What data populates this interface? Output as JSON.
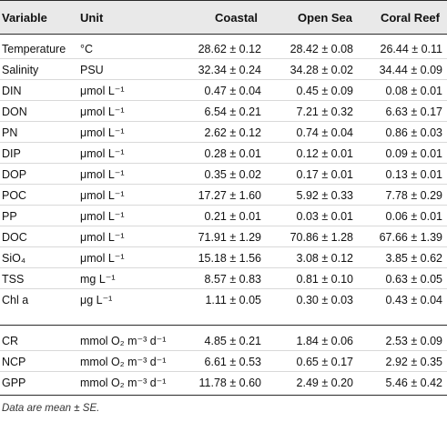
{
  "header": {
    "variable": "Variable",
    "unit": "Unit",
    "coastal": "Coastal",
    "open_sea": "Open Sea",
    "coral_reef": "Coral Reef"
  },
  "rows": [
    {
      "variable": "Temperature",
      "unit": "°C",
      "coastal": "28.62 ± 0.12",
      "open_sea": "28.42 ± 0.08",
      "coral_reef": "26.44 ± 0.11"
    },
    {
      "variable": "Salinity",
      "unit": "PSU",
      "coastal": "32.34 ± 0.24",
      "open_sea": "34.28 ± 0.02",
      "coral_reef": "34.44 ± 0.09"
    },
    {
      "variable": "DIN",
      "unit": "μmol L⁻¹",
      "coastal": "0.47 ± 0.04",
      "open_sea": "0.45 ± 0.09",
      "coral_reef": "0.08 ± 0.01"
    },
    {
      "variable": "DON",
      "unit": "μmol L⁻¹",
      "coastal": "6.54 ± 0.21",
      "open_sea": "7.21 ± 0.32",
      "coral_reef": "6.63 ± 0.17"
    },
    {
      "variable": "PN",
      "unit": "μmol L⁻¹",
      "coastal": "2.62 ± 0.12",
      "open_sea": "0.74 ± 0.04",
      "coral_reef": "0.86 ± 0.03"
    },
    {
      "variable": "DIP",
      "unit": "μmol L⁻¹",
      "coastal": "0.28 ± 0.01",
      "open_sea": "0.12 ± 0.01",
      "coral_reef": "0.09 ± 0.01"
    },
    {
      "variable": "DOP",
      "unit": "μmol L⁻¹",
      "coastal": "0.35 ± 0.02",
      "open_sea": "0.17 ± 0.01",
      "coral_reef": "0.13 ± 0.01"
    },
    {
      "variable": "POC",
      "unit": "μmol L⁻¹",
      "coastal": "17.27 ± 1.60",
      "open_sea": "5.92 ± 0.33",
      "coral_reef": "7.78 ± 0.29"
    },
    {
      "variable": "PP",
      "unit": "μmol L⁻¹",
      "coastal": "0.21 ± 0.01",
      "open_sea": "0.03 ± 0.01",
      "coral_reef": "0.06 ± 0.01"
    },
    {
      "variable": "DOC",
      "unit": "μmol L⁻¹",
      "coastal": "71.91 ± 1.29",
      "open_sea": "70.86 ± 1.28",
      "coral_reef": "67.66 ± 1.39"
    },
    {
      "variable": "SiO₄",
      "unit": "μmol L⁻¹",
      "coastal": "15.18 ± 1.56",
      "open_sea": "3.08 ± 0.12",
      "coral_reef": "3.85 ± 0.62"
    },
    {
      "variable": "TSS",
      "unit": "mg L⁻¹",
      "coastal": "8.57 ± 0.83",
      "open_sea": "0.81 ± 0.10",
      "coral_reef": "0.63 ± 0.05"
    },
    {
      "variable": "Chl a",
      "unit": "μg L⁻¹",
      "coastal": "1.11 ± 0.05",
      "open_sea": "0.30 ± 0.03",
      "coral_reef": "0.43 ± 0.04"
    },
    {
      "variable": "CR",
      "unit": "mmol O₂ m⁻³ d⁻¹",
      "coastal": "4.85 ± 0.21",
      "open_sea": "1.84 ± 0.06",
      "coral_reef": "2.53 ± 0.09"
    },
    {
      "variable": "NCP",
      "unit": "mmol O₂ m⁻³ d⁻¹",
      "coastal": "6.61 ± 0.53",
      "open_sea": "0.65 ± 0.17",
      "coral_reef": "2.92 ± 0.35"
    },
    {
      "variable": "GPP",
      "unit": "mmol O₂ m⁻³ d⁻¹",
      "coastal": "11.78 ± 0.60",
      "open_sea": "2.49 ± 0.20",
      "coral_reef": "5.46 ± 0.42"
    }
  ],
  "footnote": "Data are mean ± SE."
}
